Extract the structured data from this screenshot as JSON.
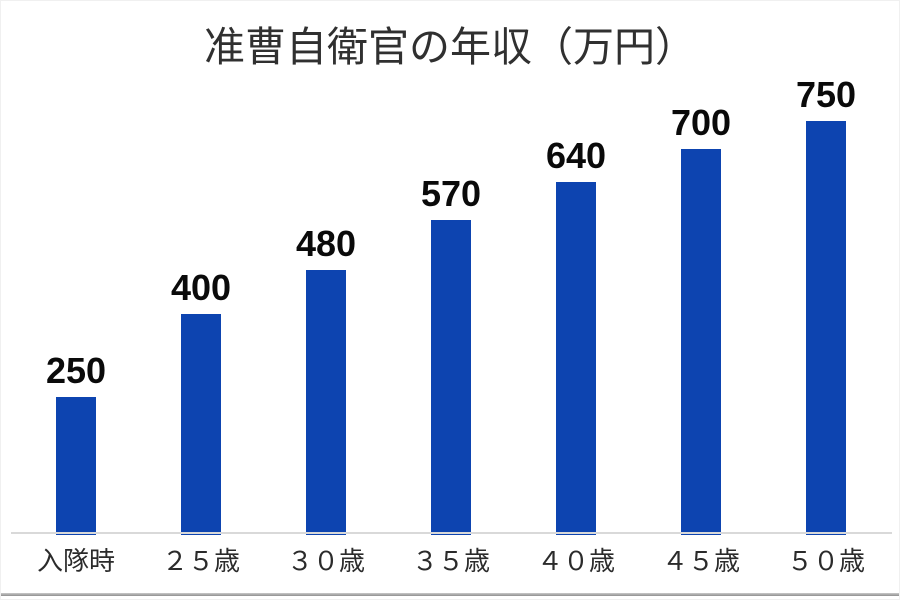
{
  "chart_data": {
    "type": "bar",
    "title": "准曹自衛官の年収（万円）",
    "categories": [
      "入隊時",
      "２５歳",
      "３０歳",
      "３５歳",
      "４０歳",
      "４５歳",
      "５０歳"
    ],
    "values": [
      250,
      400,
      480,
      570,
      640,
      700,
      750
    ],
    "value_labels": [
      "250",
      "400",
      "480",
      "570",
      "640",
      "700",
      "750"
    ],
    "series_name": "年収（万円）",
    "xlabel": "",
    "ylabel": "",
    "ylim": [
      0,
      800
    ],
    "grid": false,
    "legend_position": "none",
    "bar_color": "#0d44b0",
    "value_label_color": "#0a0a0a",
    "category_label_color": "#2b2b2b",
    "title_color": "#303030",
    "axis_line_color": "#d9d9d9",
    "bottom_border_color": "#8f8f8f",
    "background_color": "#ffffff"
  }
}
